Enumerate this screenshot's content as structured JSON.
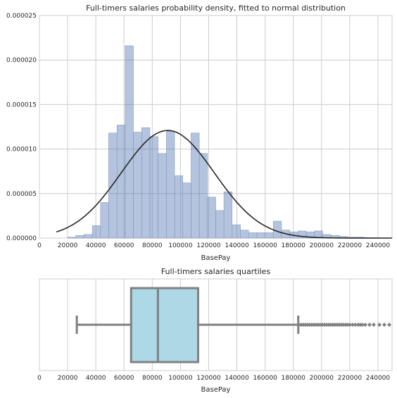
{
  "chart_data": [
    {
      "type": "bar",
      "title": "Full-timers salaries probability density, fitted to normal distribution",
      "xlabel": "BasePay",
      "ylabel": "",
      "xlim": [
        0,
        250000
      ],
      "ylim": [
        0,
        2.5e-05
      ],
      "grid": true,
      "xticks": [
        "0",
        "20000",
        "40000",
        "60000",
        "80000",
        "100000",
        "120000",
        "140000",
        "160000",
        "180000",
        "200000",
        "220000",
        "240000"
      ],
      "yticks": [
        "0.000000",
        "0.000005",
        "0.000010",
        "0.000015",
        "0.000020",
        "0.000025"
      ],
      "histogram": {
        "bin_edges": [
          20000,
          25800,
          31700,
          37500,
          43300,
          49100,
          55000,
          60800,
          66600,
          72500,
          78300,
          84100,
          90000,
          95800,
          101600,
          107500,
          113300,
          119100,
          125000,
          130800,
          136600,
          142500,
          148300,
          154100,
          160000,
          165800,
          171600,
          177500,
          183300,
          189100,
          195000,
          200800,
          206600,
          212500,
          218300,
          224100,
          230000,
          235800,
          241600,
          247500
        ],
        "density": [
          1e-07,
          3e-07,
          4e-07,
          1.4e-06,
          4e-06,
          1.18e-05,
          1.27e-05,
          2.16e-05,
          1.19e-05,
          1.24e-05,
          1.14e-05,
          9.5e-06,
          1.2e-05,
          7e-06,
          6.2e-06,
          1.18e-05,
          9.5e-06,
          4.6e-06,
          3.1e-06,
          5.2e-06,
          1.5e-06,
          9e-07,
          6e-07,
          6e-07,
          6e-07,
          1.9e-06,
          9e-07,
          7e-07,
          8e-07,
          7e-07,
          8e-07,
          4e-07,
          3e-07,
          2e-07,
          1e-07,
          1e-07,
          5e-08,
          5e-08,
          3e-08
        ],
        "color": "#4c72b0"
      },
      "normal_fit": {
        "mean": 91000,
        "std": 33000,
        "x_range": [
          12000,
          250000
        ],
        "color": "#262626"
      }
    },
    {
      "type": "box",
      "title": "Full-timers salaries quartiles",
      "xlabel": "BasePay",
      "xlim": [
        0,
        250000
      ],
      "grid": true,
      "xticks": [
        "0",
        "20000",
        "40000",
        "60000",
        "80000",
        "100000",
        "120000",
        "140000",
        "160000",
        "180000",
        "200000",
        "220000",
        "240000"
      ],
      "whisker_low": 26500,
      "q1": 65000,
      "median": 84000,
      "q3": 112500,
      "whisker_high": 183500,
      "outliers": [
        184000,
        185500,
        187000,
        188500,
        190000,
        191500,
        193000,
        194500,
        196000,
        197500,
        199000,
        200500,
        202000,
        203500,
        205000,
        206500,
        208000,
        209500,
        211000,
        212500,
        214000,
        215500,
        217000,
        218500,
        220000,
        222000,
        224000,
        226000,
        227500,
        229000,
        231000,
        234000,
        237000,
        241000,
        244500,
        248000
      ],
      "box_color": "#add8e6",
      "line_color": "#808080"
    }
  ]
}
